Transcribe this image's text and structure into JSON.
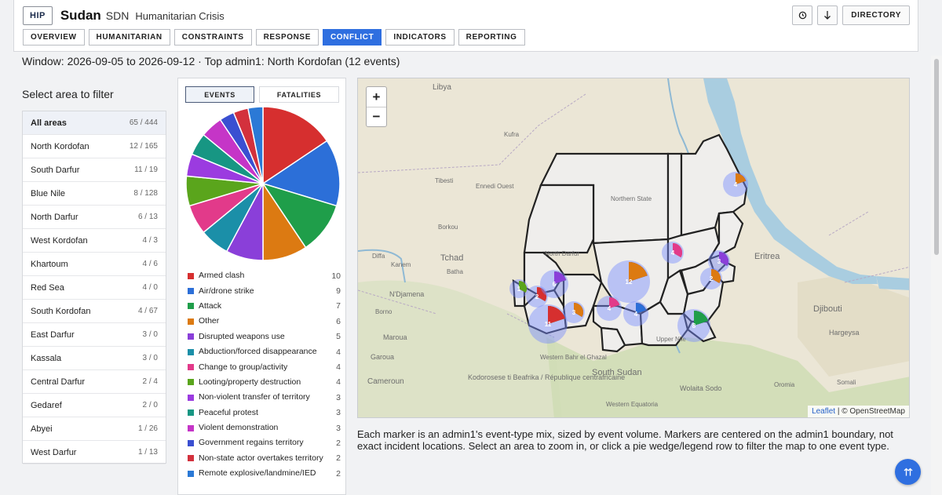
{
  "header": {
    "badge": "HIP",
    "country": "Sudan",
    "iso": "SDN",
    "crisis": "Humanitarian Crisis",
    "history_icon": "clock-icon",
    "download_icon": "download-icon",
    "directory_label": "DIRECTORY"
  },
  "tabs": [
    {
      "label": "OVERVIEW",
      "active": false
    },
    {
      "label": "HUMANITARIAN",
      "active": false
    },
    {
      "label": "CONSTRAINTS",
      "active": false
    },
    {
      "label": "RESPONSE",
      "active": false
    },
    {
      "label": "CONFLICT",
      "active": true
    },
    {
      "label": "INDICATORS",
      "active": false
    },
    {
      "label": "REPORTING",
      "active": false
    }
  ],
  "window_text": "Window: 2026-09-05 to 2026-09-12 · Top admin1: North Kordofan (12 events)",
  "filter": {
    "title": "Select area to filter",
    "areas": [
      {
        "name": "All areas",
        "count": "65 / 444",
        "selected": true
      },
      {
        "name": "North Kordofan",
        "count": "12 / 165"
      },
      {
        "name": "South Darfur",
        "count": "11 / 19"
      },
      {
        "name": "Blue Nile",
        "count": "8 / 128"
      },
      {
        "name": "North Darfur",
        "count": "6 / 13"
      },
      {
        "name": "West Kordofan",
        "count": "4 / 3"
      },
      {
        "name": "Khartoum",
        "count": "4 / 6"
      },
      {
        "name": "Red Sea",
        "count": "4 / 0"
      },
      {
        "name": "South Kordofan",
        "count": "4 / 67"
      },
      {
        "name": "East Darfur",
        "count": "3 / 0"
      },
      {
        "name": "Kassala",
        "count": "3 / 0"
      },
      {
        "name": "Central Darfur",
        "count": "2 / 4"
      },
      {
        "name": "Gedaref",
        "count": "2 / 0"
      },
      {
        "name": "Abyei",
        "count": "1 / 26"
      },
      {
        "name": "West Darfur",
        "count": "1 / 13"
      }
    ]
  },
  "chart_tabs": {
    "events": "EVENTS",
    "fatalities": "FATALITIES"
  },
  "chart_data": {
    "type": "pie",
    "categories": [
      "Armed clash",
      "Air/drone strike",
      "Attack",
      "Other",
      "Disrupted weapons use",
      "Abduction/forced disappearance",
      "Change to group/activity",
      "Looting/property destruction",
      "Non-violent transfer of territory",
      "Peaceful protest",
      "Violent demonstration",
      "Government regains territory",
      "Non-state actor overtakes territory",
      "Remote explosive/landmine/IED"
    ],
    "values": [
      10,
      9,
      7,
      6,
      5,
      4,
      4,
      4,
      3,
      3,
      3,
      2,
      2,
      2
    ],
    "colors": [
      "#d62f2f",
      "#2c6fd8",
      "#1f9e4a",
      "#dc7a12",
      "#8a3fd9",
      "#1b8fa8",
      "#e23a8a",
      "#5aa51c",
      "#9b3be0",
      "#179683",
      "#c535c7",
      "#3a4fd1",
      "#d3313d",
      "#2b79d6"
    ],
    "legend_labels": [
      "Armed clash",
      "Air/drone strike",
      "Attack",
      "Other",
      "Disrupted weapons use",
      "Abduction/forced disappearance",
      "Change to group/activity",
      "Looting/property destruction",
      "Non-violent transfer of territory",
      "Peaceful protest",
      "Violent demonstration",
      "Government regains territory",
      "Non-state actor overtakes territory",
      "Remote explosive/landmine/IED"
    ],
    "legend_values": [
      "10",
      "9",
      "7",
      "6",
      "5",
      "4",
      "4",
      "4",
      "3",
      "3",
      "3",
      "2",
      "2",
      "2"
    ]
  },
  "map": {
    "zoom_in": "+",
    "zoom_out": "−",
    "place_labels": [
      "Libya",
      "Tchad",
      "N'Djamena",
      "Eritrea",
      "Djibouti",
      "South Sudan",
      "Cameroun",
      "Hargeysa",
      "Borkou",
      "Ennedi Ouest",
      "Tibesti",
      "Batha",
      "Kanem",
      "Diffa",
      "Borno",
      "Maroua",
      "Garoua",
      "Wolaita Sodo",
      "Western Equatoria",
      "Upper Nile",
      "Western Bahr el Ghazal",
      "Oromia",
      "Somali",
      "Northern State",
      "North Darfur",
      "Kodorosese ti Beafrika / République centrafricaine",
      "Kufra"
    ],
    "markers": [
      "4",
      "3",
      "2",
      "4",
      "1",
      "2",
      "6",
      "12",
      "4",
      "3",
      "11",
      "4",
      "8"
    ],
    "attribution_leaflet": "Leaflet",
    "attribution_osm": "| © OpenStreetMap"
  },
  "note": "Each marker is an admin1's event-type mix, sized by event volume. Markers are centered on the admin1 boundary, not exact incident locations. Select an area to zoom in, or click a pie wedge/legend row to filter the map to one event type.",
  "fab_icon": "arrow-up-icon"
}
